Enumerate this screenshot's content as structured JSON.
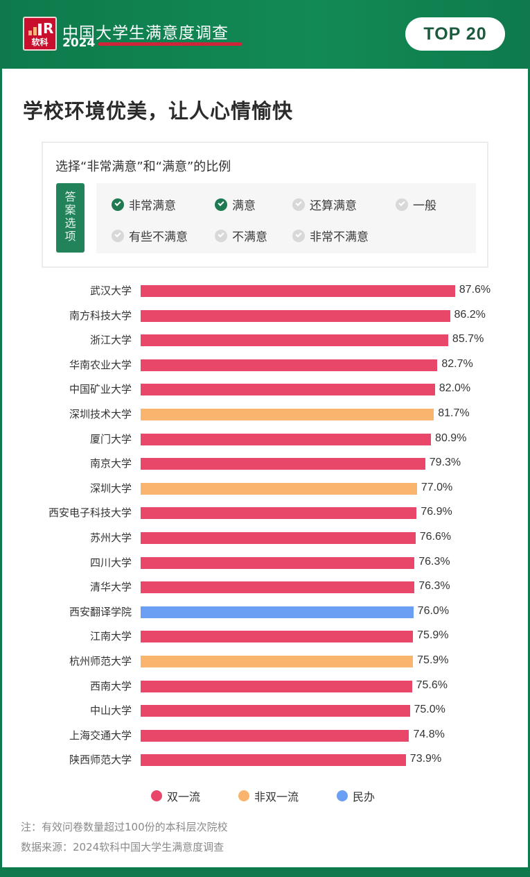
{
  "header": {
    "logo_text": "软科",
    "logo_letter": "R",
    "brand_title": "中国大学生满意度调查",
    "brand_year": "2024",
    "badge": "TOP 20"
  },
  "page_title": "学校环境优美，让人心情愉快",
  "question": {
    "text": "选择“非常满意”和“满意”的比例",
    "tag": [
      "答",
      "案",
      "选",
      "项"
    ],
    "options": [
      {
        "label": "非常满意",
        "selected": true
      },
      {
        "label": "满意",
        "selected": true
      },
      {
        "label": "还算满意",
        "selected": false
      },
      {
        "label": "一般",
        "selected": false
      },
      {
        "label": "有些不满意",
        "selected": false
      },
      {
        "label": "不满意",
        "selected": false
      },
      {
        "label": "非常不满意",
        "selected": false
      }
    ]
  },
  "colors": {
    "双一流": "#e8476a",
    "非双一流": "#f9b56d",
    "民办": "#6a9ff3"
  },
  "chart_data": {
    "type": "bar",
    "orientation": "horizontal",
    "title": "学校环境优美，让人心情愉快",
    "subtitle": "选择“非常满意”和“满意”的比例",
    "xlabel": "",
    "ylabel": "",
    "unit": "%",
    "categories": [
      "武汉大学",
      "南方科技大学",
      "浙江大学",
      "华南农业大学",
      "中国矿业大学",
      "深圳技术大学",
      "厦门大学",
      "南京大学",
      "深圳大学",
      "西安电子科技大学",
      "苏州大学",
      "四川大学",
      "清华大学",
      "西安翻译学院",
      "江南大学",
      "杭州师范大学",
      "西南大学",
      "中山大学",
      "上海交通大学",
      "陕西师范大学"
    ],
    "values": [
      87.6,
      86.2,
      85.7,
      82.7,
      82.0,
      81.7,
      80.9,
      79.3,
      77.0,
      76.9,
      76.6,
      76.3,
      76.3,
      76.0,
      75.9,
      75.9,
      75.6,
      75.0,
      74.8,
      73.9
    ],
    "value_labels": [
      "87.6%",
      "86.2%",
      "85.7%",
      "82.7%",
      "82.0%",
      "81.7%",
      "80.9%",
      "79.3%",
      "77.0%",
      "76.9%",
      "76.6%",
      "76.3%",
      "76.3%",
      "76.0%",
      "75.9%",
      "75.9%",
      "75.6%",
      "75.0%",
      "74.8%",
      "73.9%"
    ],
    "groups": [
      "双一流",
      "双一流",
      "双一流",
      "双一流",
      "双一流",
      "非双一流",
      "双一流",
      "双一流",
      "非双一流",
      "双一流",
      "双一流",
      "双一流",
      "双一流",
      "民办",
      "双一流",
      "非双一流",
      "双一流",
      "双一流",
      "双一流",
      "双一流"
    ],
    "legend": [
      "双一流",
      "非双一流",
      "民办"
    ],
    "legend_position": "bottom",
    "grid": false,
    "xlim": [
      0,
      100
    ]
  },
  "legend": [
    {
      "label": "双一流",
      "color": "#e8476a"
    },
    {
      "label": "非双一流",
      "color": "#f9b56d"
    },
    {
      "label": "民办",
      "color": "#6a9ff3"
    }
  ],
  "notes": {
    "note": "注：有效问卷数量超过100份的本科层次院校",
    "source": "数据来源：2024软科中国大学生满意度调查"
  }
}
